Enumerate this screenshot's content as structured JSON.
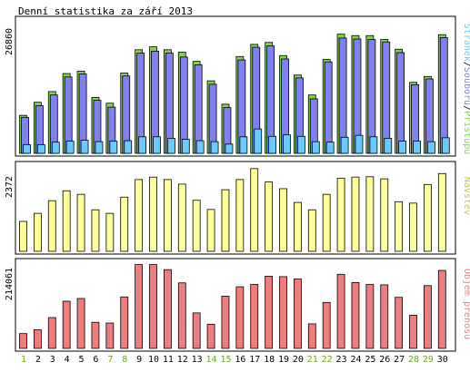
{
  "title": "Denní statistika za září 2013",
  "colors": {
    "background": "#ffffff",
    "panel_border": "#000000",
    "panel_background": "#ffffff",
    "pages": "#7cd54a",
    "files": "#8080ee",
    "hits": "#66ccff",
    "visits": "#ffff99",
    "traffic": "#f07d7d",
    "weekday_label": "#000000",
    "weekend_label": "#66aa22"
  },
  "chart_data": [
    {
      "type": "bar",
      "panel": "top",
      "ymax_label": "26860",
      "ylim": [
        0,
        26860
      ],
      "categories": [
        "1",
        "2",
        "3",
        "4",
        "5",
        "6",
        "7",
        "8",
        "9",
        "10",
        "11",
        "12",
        "13",
        "14",
        "15",
        "16",
        "17",
        "18",
        "19",
        "20",
        "21",
        "22",
        "23",
        "24",
        "25",
        "26",
        "27",
        "28",
        "29",
        "30"
      ],
      "weekend_days": [
        "1",
        "7",
        "8",
        "14",
        "15",
        "21",
        "22",
        "28",
        "29"
      ],
      "legend": [
        "Stránek",
        "Souborů",
        "Přístupů"
      ],
      "legend_separator": "/",
      "series": [
        {
          "name": "Přístupů",
          "values": [
            7800,
            10500,
            12700,
            16400,
            16900,
            11500,
            10300,
            16500,
            21300,
            21900,
            21300,
            20800,
            18900,
            14900,
            10100,
            19900,
            22400,
            22800,
            20100,
            16100,
            12000,
            19300,
            24500,
            24200,
            24200,
            23400,
            21400,
            14600,
            15800,
            24400
          ]
        },
        {
          "name": "Souborů",
          "values": [
            7400,
            9800,
            12000,
            15700,
            16300,
            10900,
            9500,
            15900,
            20600,
            21000,
            20600,
            19800,
            18200,
            14200,
            9400,
            19200,
            21800,
            22100,
            19400,
            15500,
            11200,
            18800,
            23700,
            23500,
            23400,
            22900,
            20700,
            14100,
            15300,
            23800
          ]
        },
        {
          "name": "Stránek",
          "values": [
            1800,
            1800,
            2300,
            2500,
            2700,
            2400,
            2500,
            2600,
            3400,
            3400,
            3100,
            2900,
            2600,
            2400,
            1900,
            3400,
            5000,
            3500,
            3800,
            3500,
            2400,
            2300,
            3300,
            3700,
            3400,
            3100,
            2500,
            2500,
            2400,
            3200
          ]
        }
      ]
    },
    {
      "type": "bar",
      "panel": "middle",
      "ymax_label": "2372",
      "ylim": [
        0,
        2372
      ],
      "legend": [
        "Návštěv"
      ],
      "series": [
        {
          "name": "Návštěv",
          "values": [
            850,
            1080,
            1440,
            1720,
            1620,
            1180,
            1080,
            1540,
            2040,
            2110,
            2040,
            1910,
            1450,
            1190,
            1750,
            2040,
            2350,
            1970,
            1780,
            1390,
            1180,
            1620,
            2080,
            2110,
            2120,
            2060,
            1410,
            1370,
            1900,
            2210
          ]
        }
      ]
    },
    {
      "type": "bar",
      "panel": "bottom",
      "ymax_label": "214061",
      "ylim": [
        0,
        214061
      ],
      "legend": [
        "Objem přenosu"
      ],
      "series": [
        {
          "name": "Objem přenosu",
          "values": [
            38000,
            48000,
            79000,
            121000,
            128000,
            67000,
            65000,
            132000,
            215000,
            215000,
            202000,
            168000,
            91000,
            62000,
            134000,
            158000,
            164000,
            185000,
            184000,
            178000,
            63000,
            118000,
            190000,
            169000,
            164000,
            163000,
            131000,
            85000,
            161000,
            200000
          ]
        }
      ]
    }
  ]
}
